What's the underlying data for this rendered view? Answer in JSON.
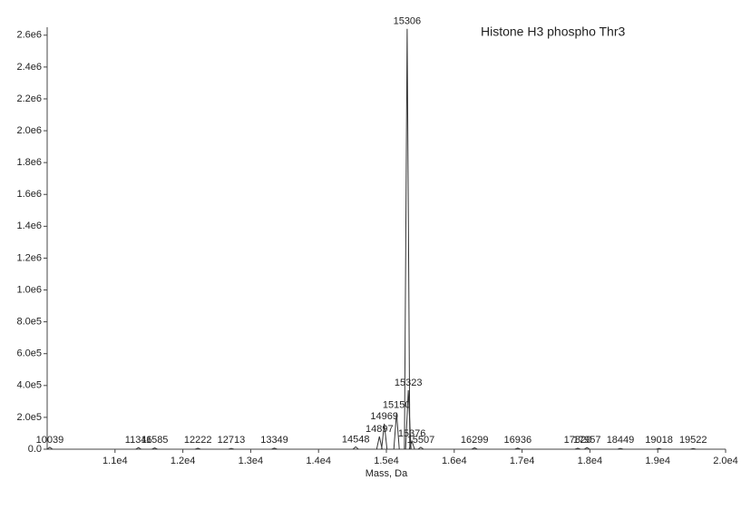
{
  "chart_data": {
    "type": "stem",
    "annotation": "Histone H3 phospho Thr3",
    "xlabel": "Mass, Da",
    "x": [
      10039,
      11346,
      11585,
      12222,
      12713,
      13349,
      14548,
      14897,
      14969,
      15150,
      15306,
      15323,
      15376,
      15507,
      16299,
      16936,
      17820,
      17957,
      18449,
      19018,
      19522
    ],
    "values": [
      12000,
      10000,
      8000,
      6000,
      5000,
      7000,
      15000,
      80000,
      160000,
      230000,
      2640000,
      370000,
      50000,
      12000,
      9000,
      7000,
      6000,
      10000,
      5000,
      5000,
      4000
    ],
    "color": "#333333",
    "xlim": [
      10000,
      20000
    ],
    "xticks": [
      {
        "value": 11000,
        "label": "1.1e4"
      },
      {
        "value": 12000,
        "label": "1.2e4"
      },
      {
        "value": 13000,
        "label": "1.3e4"
      },
      {
        "value": 14000,
        "label": "1.4e4"
      },
      {
        "value": 15000,
        "label": "1.5e4"
      },
      {
        "value": 16000,
        "label": "1.6e4"
      },
      {
        "value": 17000,
        "label": "1.7e4"
      },
      {
        "value": 18000,
        "label": "1.8e4"
      },
      {
        "value": 19000,
        "label": "1.9e4"
      },
      {
        "value": 20000,
        "label": "2.0e4"
      }
    ],
    "ylim": [
      0,
      2650000
    ],
    "yticks": [
      {
        "value": 0,
        "label": "0.0"
      },
      {
        "value": 200000,
        "label": "2.0e5"
      },
      {
        "value": 400000,
        "label": "4.0e5"
      },
      {
        "value": 600000,
        "label": "6.0e5"
      },
      {
        "value": 800000,
        "label": "8.0e5"
      },
      {
        "value": 1000000,
        "label": "1.0e6"
      },
      {
        "value": 1200000,
        "label": "1.2e6"
      },
      {
        "value": 1400000,
        "label": "1.4e6"
      },
      {
        "value": 1600000,
        "label": "1.6e6"
      },
      {
        "value": 1800000,
        "label": "1.8e6"
      },
      {
        "value": 2000000,
        "label": "2.0e6"
      },
      {
        "value": 2200000,
        "label": "2.2e6"
      },
      {
        "value": 2400000,
        "label": "2.4e6"
      },
      {
        "value": 2600000,
        "label": "2.6e6"
      }
    ]
  }
}
